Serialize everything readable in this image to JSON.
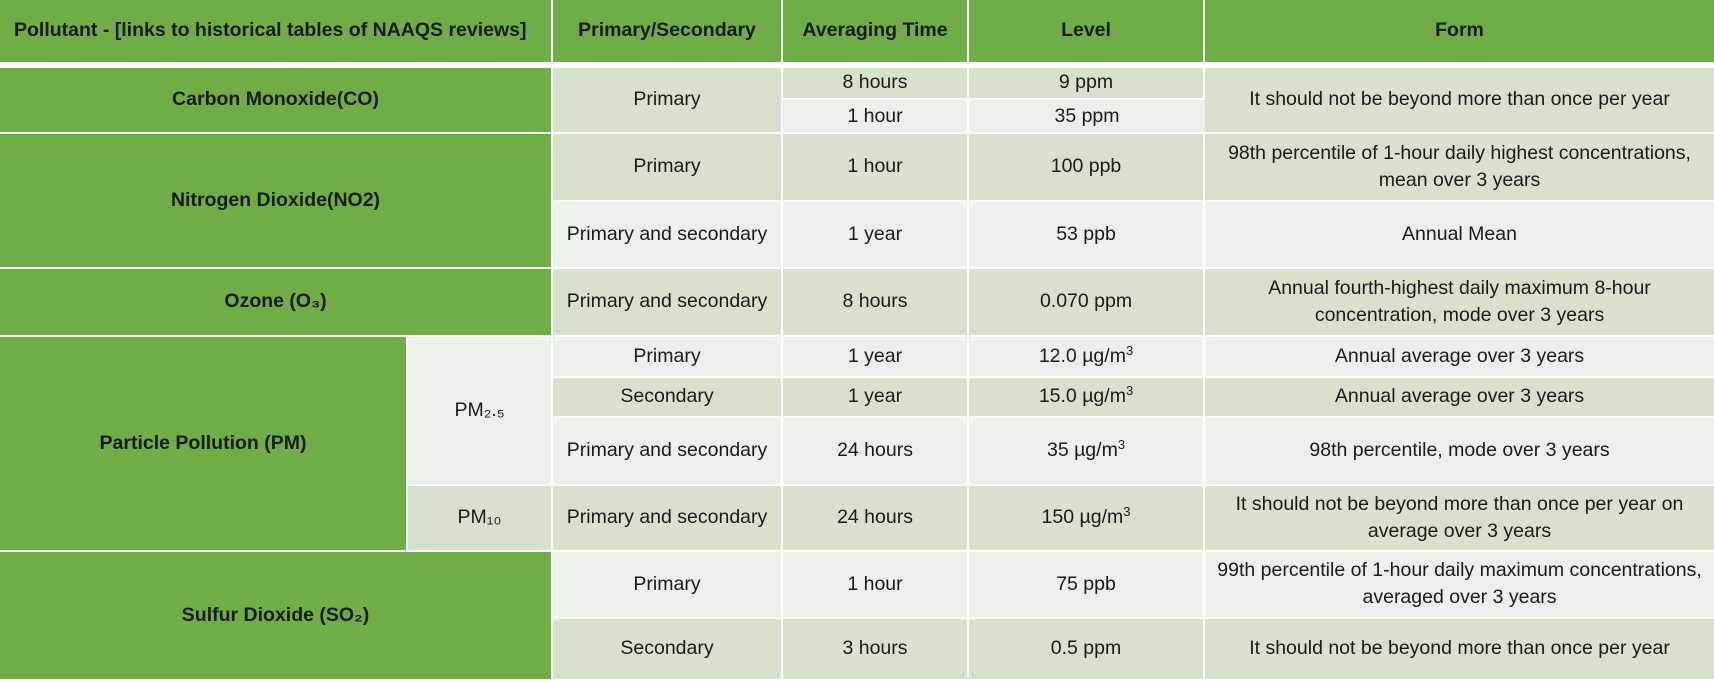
{
  "header": {
    "pollutant": "Pollutant - [links to historical tables of NAAQS reviews]",
    "primary_secondary": "Primary/Secondary",
    "averaging_time": "Averaging Time",
    "level": "Level",
    "form": "Form"
  },
  "pollutants": {
    "co": {
      "name": "Carbon Monoxide(CO)",
      "standard": "Primary",
      "form": "It should not be beyond more than once per year",
      "rows": [
        {
          "time": "8 hours",
          "level": "9 ppm"
        },
        {
          "time": "1 hour",
          "level": "35 ppm"
        }
      ]
    },
    "no2": {
      "name": "Nitrogen Dioxide(NO2)",
      "rows": [
        {
          "standard": "Primary",
          "time": "1 hour",
          "level": "100 ppb",
          "form": "98th percentile of 1-hour daily highest concentrations, mean over 3 years"
        },
        {
          "standard": "Primary and secondary",
          "time": "1 year",
          "level": "53 ppb",
          "form": "Annual Mean"
        }
      ]
    },
    "o3": {
      "name": "Ozone (O₃)",
      "rows": [
        {
          "standard": "Primary and secondary",
          "time": "8 hours",
          "level": "0.070 ppm",
          "form": "Annual fourth-highest daily maximum 8-hour concentration, mode over 3 years"
        }
      ]
    },
    "pm": {
      "name": "Particle Pollution (PM)",
      "pm25": {
        "label": "PM₂.₅",
        "rows": [
          {
            "standard": "Primary",
            "time": "1 year",
            "level": "12.0 µg/m",
            "form": "Annual average over 3 years"
          },
          {
            "standard": "Secondary",
            "time": "1 year",
            "level": "15.0 µg/m",
            "form": "Annual average over 3 years"
          },
          {
            "standard": "Primary and secondary",
            "time": "24 hours",
            "level": "35 µg/m",
            "form": "98th percentile, mode over 3 years"
          }
        ]
      },
      "pm10": {
        "label": "PM₁₀",
        "rows": [
          {
            "standard": "Primary and secondary",
            "time": "24 hours",
            "level": "150 µg/m",
            "form": "It should not be beyond more than once per year on average over 3 years"
          }
        ]
      },
      "unit_exponent": "3"
    },
    "so2": {
      "name": "Sulfur Dioxide (SO₂)",
      "rows": [
        {
          "standard": "Primary",
          "time": "1 hour",
          "level": "75 ppb",
          "form": "99th percentile of 1-hour daily maximum concentrations, averaged over 3 years"
        },
        {
          "standard": "Secondary",
          "time": "3 hours",
          "level": "0.5 ppm",
          "form": "It should not be beyond more than once per year"
        }
      ]
    }
  },
  "colors": {
    "header_green": "#70ad47",
    "dark_band": "#d5e3cc",
    "light_band": "#eaf1e6"
  }
}
